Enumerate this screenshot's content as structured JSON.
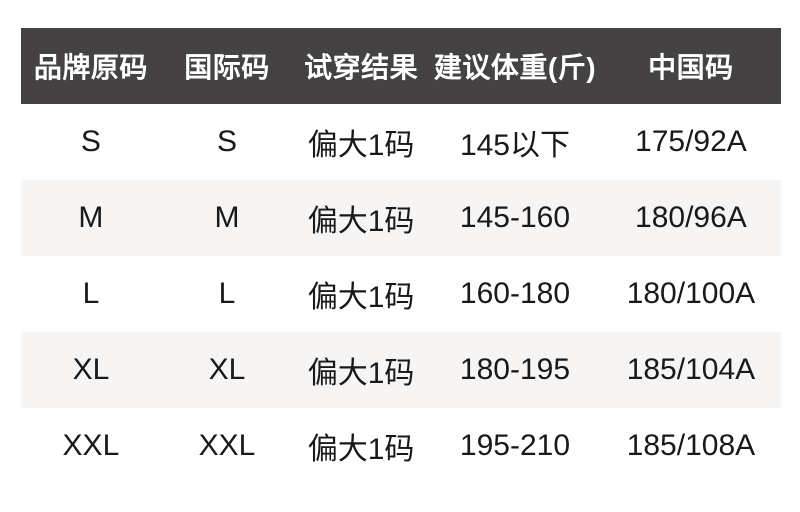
{
  "colors": {
    "page_background": "#ffffff",
    "header_background": "#444243",
    "header_text": "#ffffff",
    "zebra_row_background": "#f6f5f3",
    "body_text": "#191919"
  },
  "chart_data": {
    "type": "table",
    "columns": [
      "品牌原码",
      "国际码",
      "试穿结果",
      "建议体重(斤)",
      "中国码"
    ],
    "rows": [
      [
        "S",
        "S",
        "偏大1码",
        "145以下",
        "175/92A"
      ],
      [
        "M",
        "M",
        "偏大1码",
        "145-160",
        "180/96A"
      ],
      [
        "L",
        "L",
        "偏大1码",
        "160-180",
        "180/100A"
      ],
      [
        "XL",
        "XL",
        "偏大1码",
        "180-195",
        "185/104A"
      ],
      [
        "XXL",
        "XXL",
        "偏大1码",
        "195-210",
        "185/108A"
      ]
    ],
    "layout_hints": {
      "zebra_striping": "even body rows shaded",
      "grid_lines": "none",
      "alignment": "all cells centered"
    }
  }
}
